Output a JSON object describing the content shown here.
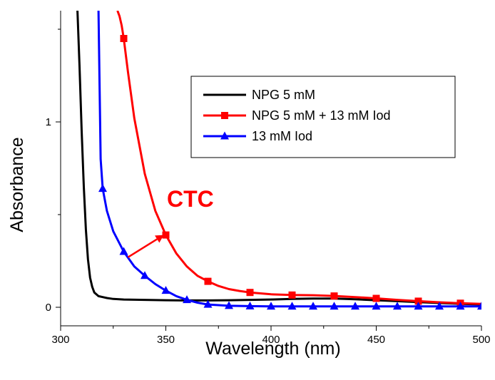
{
  "chart_data": {
    "type": "line",
    "title": "",
    "xlabel": "Wavelength (nm)",
    "ylabel": "Absorbance",
    "xlim": [
      300,
      500
    ],
    "ylim": [
      -0.1,
      1.6
    ],
    "x_ticks": [
      300,
      350,
      400,
      450,
      500
    ],
    "y_ticks": [
      0,
      1
    ],
    "grid": false,
    "legend_position": "top-right",
    "annotation": {
      "text": "CTC",
      "color": "#ff0000",
      "arrow_from": [
        332,
        0.27
      ],
      "arrow_to": [
        349,
        0.39
      ]
    },
    "series": [
      {
        "name": "NPG 5 mM",
        "color": "#000000",
        "marker": "none",
        "x": [
          308,
          309,
          310,
          311,
          312,
          313,
          314,
          315,
          316,
          318,
          320,
          322,
          325,
          330,
          340,
          350,
          360,
          370,
          380,
          390,
          400,
          410,
          420,
          430,
          440,
          450,
          460,
          470,
          480,
          490,
          500
        ],
        "y": [
          1.6,
          1.3,
          0.95,
          0.65,
          0.42,
          0.26,
          0.16,
          0.11,
          0.08,
          0.06,
          0.055,
          0.05,
          0.045,
          0.042,
          0.04,
          0.038,
          0.037,
          0.037,
          0.038,
          0.04,
          0.042,
          0.045,
          0.047,
          0.047,
          0.043,
          0.038,
          0.033,
          0.028,
          0.023,
          0.019,
          0.015
        ]
      },
      {
        "name": "NPG 5 mM + 13 mM Iod",
        "color": "#ff0000",
        "marker": "square",
        "x": [
          327,
          328,
          329,
          330,
          332,
          335,
          340,
          345,
          350,
          355,
          360,
          365,
          370,
          375,
          380,
          385,
          390,
          400,
          410,
          420,
          430,
          440,
          450,
          460,
          470,
          480,
          490,
          500
        ],
        "y": [
          1.6,
          1.57,
          1.52,
          1.45,
          1.27,
          1.02,
          0.72,
          0.52,
          0.39,
          0.29,
          0.22,
          0.17,
          0.14,
          0.115,
          0.098,
          0.088,
          0.08,
          0.07,
          0.066,
          0.065,
          0.061,
          0.055,
          0.048,
          0.04,
          0.033,
          0.027,
          0.022,
          0.018
        ]
      },
      {
        "name": "13 mM Iod",
        "color": "#0000ff",
        "marker": "triangle",
        "x": [
          318,
          319,
          320,
          322,
          325,
          330,
          335,
          340,
          345,
          350,
          355,
          360,
          365,
          370,
          380,
          390,
          400,
          410,
          420,
          430,
          440,
          450,
          460,
          470,
          480,
          490,
          500
        ],
        "y": [
          1.6,
          0.8,
          0.64,
          0.52,
          0.41,
          0.3,
          0.22,
          0.17,
          0.125,
          0.09,
          0.06,
          0.04,
          0.025,
          0.015,
          0.008,
          0.006,
          0.005,
          0.005,
          0.005,
          0.005,
          0.005,
          0.005,
          0.005,
          0.005,
          0.005,
          0.005,
          0.005
        ]
      }
    ]
  }
}
